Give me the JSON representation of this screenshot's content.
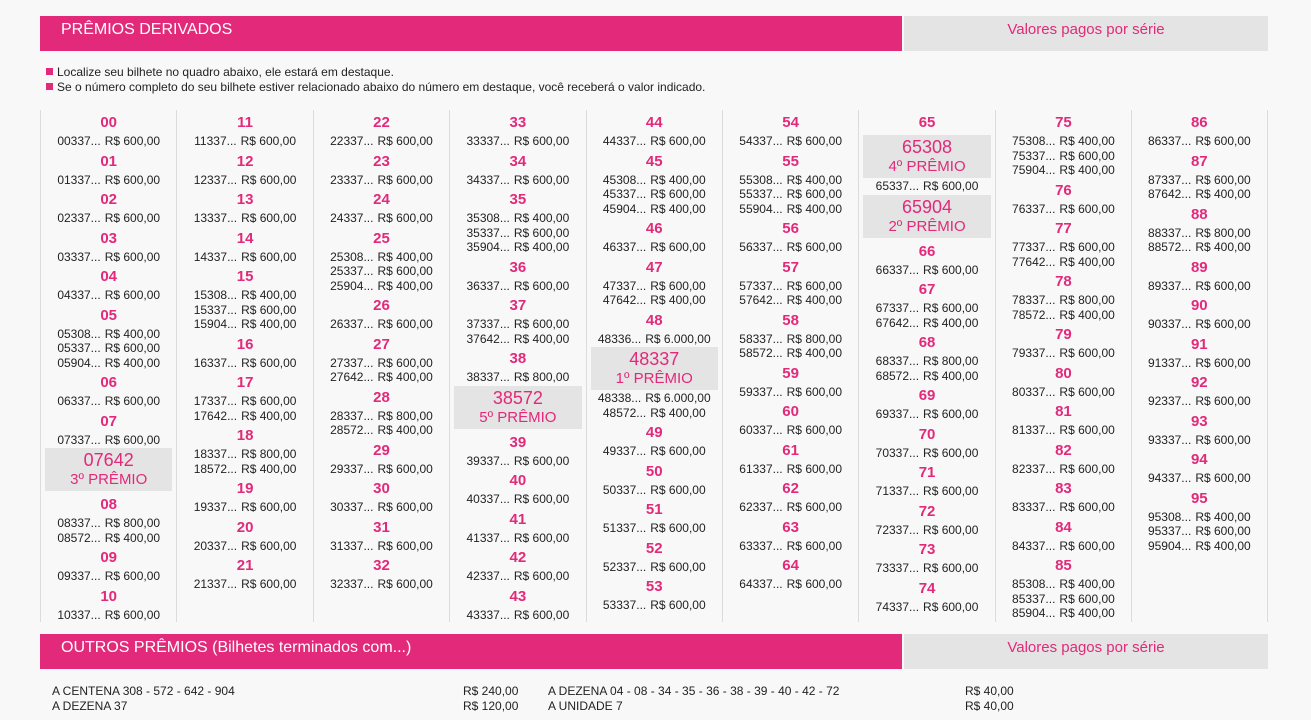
{
  "header": {
    "title": "PRÊMIOS DERIVADOS",
    "side": "Valores pagos por série"
  },
  "notes": [
    "Localize seu bilhete no quadro abaixo, ele estará em destaque.",
    "Se o número completo do seu bilhete estiver relacionado abaixo do número em destaque, você receberá o valor indicado."
  ],
  "columns": [
    {
      "groups": [
        {
          "label": "00",
          "rows": [
            [
              "00337...",
              "R$ 600,00"
            ]
          ]
        },
        {
          "label": "01",
          "rows": [
            [
              "01337...",
              "R$ 600,00"
            ]
          ]
        },
        {
          "label": "02",
          "rows": [
            [
              "02337...",
              "R$ 600,00"
            ]
          ]
        },
        {
          "label": "03",
          "rows": [
            [
              "03337...",
              "R$ 600,00"
            ]
          ]
        },
        {
          "label": "04",
          "rows": [
            [
              "04337...",
              "R$ 600,00"
            ]
          ]
        },
        {
          "label": "05",
          "rows": [
            [
              "05308...",
              "R$ 400,00"
            ],
            [
              "05337...",
              "R$ 600,00"
            ],
            [
              "05904...",
              "R$ 400,00"
            ]
          ]
        },
        {
          "label": "06",
          "rows": [
            [
              "06337...",
              "R$ 600,00"
            ]
          ]
        },
        {
          "label": "07",
          "rows": [
            [
              "07337...",
              "R$ 600,00"
            ],
            {
              "number": "07642",
              "prize": "3º PRÊMIO"
            }
          ]
        },
        {
          "label": "08",
          "rows": [
            [
              "08337...",
              "R$ 800,00"
            ],
            [
              "08572...",
              "R$ 400,00"
            ]
          ]
        },
        {
          "label": "09",
          "rows": [
            [
              "09337...",
              "R$ 600,00"
            ]
          ]
        },
        {
          "label": "10",
          "rows": [
            [
              "10337...",
              "R$ 600,00"
            ]
          ]
        }
      ]
    },
    {
      "groups": [
        {
          "label": "11",
          "rows": [
            [
              "11337...",
              "R$ 600,00"
            ]
          ]
        },
        {
          "label": "12",
          "rows": [
            [
              "12337...",
              "R$ 600,00"
            ]
          ]
        },
        {
          "label": "13",
          "rows": [
            [
              "13337...",
              "R$ 600,00"
            ]
          ]
        },
        {
          "label": "14",
          "rows": [
            [
              "14337...",
              "R$ 600,00"
            ]
          ]
        },
        {
          "label": "15",
          "rows": [
            [
              "15308...",
              "R$ 400,00"
            ],
            [
              "15337...",
              "R$ 600,00"
            ],
            [
              "15904...",
              "R$ 400,00"
            ]
          ]
        },
        {
          "label": "16",
          "rows": [
            [
              "16337...",
              "R$ 600,00"
            ]
          ]
        },
        {
          "label": "17",
          "rows": [
            [
              "17337...",
              "R$ 600,00"
            ],
            [
              "17642...",
              "R$ 400,00"
            ]
          ]
        },
        {
          "label": "18",
          "rows": [
            [
              "18337...",
              "R$ 800,00"
            ],
            [
              "18572...",
              "R$ 400,00"
            ]
          ]
        },
        {
          "label": "19",
          "rows": [
            [
              "19337...",
              "R$ 600,00"
            ]
          ]
        },
        {
          "label": "20",
          "rows": [
            [
              "20337...",
              "R$ 600,00"
            ]
          ]
        },
        {
          "label": "21",
          "rows": [
            [
              "21337...",
              "R$ 600,00"
            ]
          ]
        }
      ]
    },
    {
      "groups": [
        {
          "label": "22",
          "rows": [
            [
              "22337...",
              "R$ 600,00"
            ]
          ]
        },
        {
          "label": "23",
          "rows": [
            [
              "23337...",
              "R$ 600,00"
            ]
          ]
        },
        {
          "label": "24",
          "rows": [
            [
              "24337...",
              "R$ 600,00"
            ]
          ]
        },
        {
          "label": "25",
          "rows": [
            [
              "25308...",
              "R$ 400,00"
            ],
            [
              "25337...",
              "R$ 600,00"
            ],
            [
              "25904...",
              "R$ 400,00"
            ]
          ]
        },
        {
          "label": "26",
          "rows": [
            [
              "26337...",
              "R$ 600,00"
            ]
          ]
        },
        {
          "label": "27",
          "rows": [
            [
              "27337...",
              "R$ 600,00"
            ],
            [
              "27642...",
              "R$ 400,00"
            ]
          ]
        },
        {
          "label": "28",
          "rows": [
            [
              "28337...",
              "R$ 800,00"
            ],
            [
              "28572...",
              "R$ 400,00"
            ]
          ]
        },
        {
          "label": "29",
          "rows": [
            [
              "29337...",
              "R$ 600,00"
            ]
          ]
        },
        {
          "label": "30",
          "rows": [
            [
              "30337...",
              "R$ 600,00"
            ]
          ]
        },
        {
          "label": "31",
          "rows": [
            [
              "31337...",
              "R$ 600,00"
            ]
          ]
        },
        {
          "label": "32",
          "rows": [
            [
              "32337...",
              "R$ 600,00"
            ]
          ]
        }
      ]
    },
    {
      "groups": [
        {
          "label": "33",
          "rows": [
            [
              "33337...",
              "R$ 600,00"
            ]
          ]
        },
        {
          "label": "34",
          "rows": [
            [
              "34337...",
              "R$ 600,00"
            ]
          ]
        },
        {
          "label": "35",
          "rows": [
            [
              "35308...",
              "R$ 400,00"
            ],
            [
              "35337...",
              "R$ 600,00"
            ],
            [
              "35904...",
              "R$ 400,00"
            ]
          ]
        },
        {
          "label": "36",
          "rows": [
            [
              "36337...",
              "R$ 600,00"
            ]
          ]
        },
        {
          "label": "37",
          "rows": [
            [
              "37337...",
              "R$ 600,00"
            ],
            [
              "37642...",
              "R$ 400,00"
            ]
          ]
        },
        {
          "label": "38",
          "rows": [
            [
              "38337...",
              "R$ 800,00"
            ],
            {
              "number": "38572",
              "prize": "5º PRÊMIO"
            }
          ]
        },
        {
          "label": "39",
          "rows": [
            [
              "39337...",
              "R$ 600,00"
            ]
          ]
        },
        {
          "label": "40",
          "rows": [
            [
              "40337...",
              "R$ 600,00"
            ]
          ]
        },
        {
          "label": "41",
          "rows": [
            [
              "41337...",
              "R$ 600,00"
            ]
          ]
        },
        {
          "label": "42",
          "rows": [
            [
              "42337...",
              "R$ 600,00"
            ]
          ]
        },
        {
          "label": "43",
          "rows": [
            [
              "43337...",
              "R$ 600,00"
            ]
          ]
        }
      ]
    },
    {
      "groups": [
        {
          "label": "44",
          "rows": [
            [
              "44337...",
              "R$ 600,00"
            ]
          ]
        },
        {
          "label": "45",
          "rows": [
            [
              "45308...",
              "R$ 400,00"
            ],
            [
              "45337...",
              "R$ 600,00"
            ],
            [
              "45904...",
              "R$ 400,00"
            ]
          ]
        },
        {
          "label": "46",
          "rows": [
            [
              "46337...",
              "R$ 600,00"
            ]
          ]
        },
        {
          "label": "47",
          "rows": [
            [
              "47337...",
              "R$ 600,00"
            ],
            [
              "47642...",
              "R$ 400,00"
            ]
          ]
        },
        {
          "label": "48",
          "rows": [
            [
              "48336...",
              "R$ 6.000,00"
            ],
            {
              "number": "48337",
              "prize": "1º PRÊMIO"
            },
            [
              "48338...",
              "R$ 6.000,00"
            ],
            [
              "48572...",
              "R$ 400,00"
            ]
          ]
        },
        {
          "label": "49",
          "rows": [
            [
              "49337...",
              "R$ 600,00"
            ]
          ]
        },
        {
          "label": "50",
          "rows": [
            [
              "50337...",
              "R$ 600,00"
            ]
          ]
        },
        {
          "label": "51",
          "rows": [
            [
              "51337...",
              "R$ 600,00"
            ]
          ]
        },
        {
          "label": "52",
          "rows": [
            [
              "52337...",
              "R$ 600,00"
            ]
          ]
        },
        {
          "label": "53",
          "rows": [
            [
              "53337...",
              "R$ 600,00"
            ]
          ]
        }
      ]
    },
    {
      "groups": [
        {
          "label": "54",
          "rows": [
            [
              "54337...",
              "R$ 600,00"
            ]
          ]
        },
        {
          "label": "55",
          "rows": [
            [
              "55308...",
              "R$ 400,00"
            ],
            [
              "55337...",
              "R$ 600,00"
            ],
            [
              "55904...",
              "R$ 400,00"
            ]
          ]
        },
        {
          "label": "56",
          "rows": [
            [
              "56337...",
              "R$ 600,00"
            ]
          ]
        },
        {
          "label": "57",
          "rows": [
            [
              "57337...",
              "R$ 600,00"
            ],
            [
              "57642...",
              "R$ 400,00"
            ]
          ]
        },
        {
          "label": "58",
          "rows": [
            [
              "58337...",
              "R$ 800,00"
            ],
            [
              "58572...",
              "R$ 400,00"
            ]
          ]
        },
        {
          "label": "59",
          "rows": [
            [
              "59337...",
              "R$ 600,00"
            ]
          ]
        },
        {
          "label": "60",
          "rows": [
            [
              "60337...",
              "R$ 600,00"
            ]
          ]
        },
        {
          "label": "61",
          "rows": [
            [
              "61337...",
              "R$ 600,00"
            ]
          ]
        },
        {
          "label": "62",
          "rows": [
            [
              "62337...",
              "R$ 600,00"
            ]
          ]
        },
        {
          "label": "63",
          "rows": [
            [
              "63337...",
              "R$ 600,00"
            ]
          ]
        },
        {
          "label": "64",
          "rows": [
            [
              "64337...",
              "R$ 600,00"
            ]
          ]
        }
      ]
    },
    {
      "groups": [
        {
          "label": "65",
          "rows": [
            {
              "number": "65308",
              "prize": "4º PRÊMIO"
            },
            [
              "65337...",
              "R$ 600,00"
            ],
            {
              "number": "65904",
              "prize": "2º PRÊMIO"
            }
          ]
        },
        {
          "label": "66",
          "rows": [
            [
              "66337...",
              "R$ 600,00"
            ]
          ]
        },
        {
          "label": "67",
          "rows": [
            [
              "67337...",
              "R$ 600,00"
            ],
            [
              "67642...",
              "R$ 400,00"
            ]
          ]
        },
        {
          "label": "68",
          "rows": [
            [
              "68337...",
              "R$ 800,00"
            ],
            [
              "68572...",
              "R$ 400,00"
            ]
          ]
        },
        {
          "label": "69",
          "rows": [
            [
              "69337...",
              "R$ 600,00"
            ]
          ]
        },
        {
          "label": "70",
          "rows": [
            [
              "70337...",
              "R$ 600,00"
            ]
          ]
        },
        {
          "label": "71",
          "rows": [
            [
              "71337...",
              "R$ 600,00"
            ]
          ]
        },
        {
          "label": "72",
          "rows": [
            [
              "72337...",
              "R$ 600,00"
            ]
          ]
        },
        {
          "label": "73",
          "rows": [
            [
              "73337...",
              "R$ 600,00"
            ]
          ]
        },
        {
          "label": "74",
          "rows": [
            [
              "74337...",
              "R$ 600,00"
            ]
          ]
        }
      ]
    },
    {
      "groups": [
        {
          "label": "75",
          "rows": [
            [
              "75308...",
              "R$ 400,00"
            ],
            [
              "75337...",
              "R$ 600,00"
            ],
            [
              "75904...",
              "R$ 400,00"
            ]
          ]
        },
        {
          "label": "76",
          "rows": [
            [
              "76337...",
              "R$ 600,00"
            ]
          ]
        },
        {
          "label": "77",
          "rows": [
            [
              "77337...",
              "R$ 600,00"
            ],
            [
              "77642...",
              "R$ 400,00"
            ]
          ]
        },
        {
          "label": "78",
          "rows": [
            [
              "78337...",
              "R$ 800,00"
            ],
            [
              "78572...",
              "R$ 400,00"
            ]
          ]
        },
        {
          "label": "79",
          "rows": [
            [
              "79337...",
              "R$ 600,00"
            ]
          ]
        },
        {
          "label": "80",
          "rows": [
            [
              "80337...",
              "R$ 600,00"
            ]
          ]
        },
        {
          "label": "81",
          "rows": [
            [
              "81337...",
              "R$ 600,00"
            ]
          ]
        },
        {
          "label": "82",
          "rows": [
            [
              "82337...",
              "R$ 600,00"
            ]
          ]
        },
        {
          "label": "83",
          "rows": [
            [
              "83337...",
              "R$ 600,00"
            ]
          ]
        },
        {
          "label": "84",
          "rows": [
            [
              "84337...",
              "R$ 600,00"
            ]
          ]
        },
        {
          "label": "85",
          "rows": [
            [
              "85308...",
              "R$ 400,00"
            ],
            [
              "85337...",
              "R$ 600,00"
            ],
            [
              "85904...",
              "R$ 400,00"
            ]
          ]
        }
      ]
    },
    {
      "groups": [
        {
          "label": "86",
          "rows": [
            [
              "86337...",
              "R$ 600,00"
            ]
          ]
        },
        {
          "label": "87",
          "rows": [
            [
              "87337...",
              "R$ 600,00"
            ],
            [
              "87642...",
              "R$ 400,00"
            ]
          ]
        },
        {
          "label": "88",
          "rows": [
            [
              "88337...",
              "R$ 800,00"
            ],
            [
              "88572...",
              "R$ 400,00"
            ]
          ]
        },
        {
          "label": "89",
          "rows": [
            [
              "89337...",
              "R$ 600,00"
            ]
          ]
        },
        {
          "label": "90",
          "rows": [
            [
              "90337...",
              "R$ 600,00"
            ]
          ]
        },
        {
          "label": "91",
          "rows": [
            [
              "91337...",
              "R$ 600,00"
            ]
          ]
        },
        {
          "label": "92",
          "rows": [
            [
              "92337...",
              "R$ 600,00"
            ]
          ]
        },
        {
          "label": "93",
          "rows": [
            [
              "93337...",
              "R$ 600,00"
            ]
          ]
        },
        {
          "label": "94",
          "rows": [
            [
              "94337...",
              "R$ 600,00"
            ]
          ]
        },
        {
          "label": "95",
          "rows": [
            [
              "95308...",
              "R$ 400,00"
            ],
            [
              "95337...",
              "R$ 600,00"
            ],
            [
              "95904...",
              "R$ 400,00"
            ]
          ]
        }
      ]
    }
  ],
  "other": {
    "title": "OUTROS PRÊMIOS (Bilhetes terminados com...)",
    "side": "Valores pagos por série",
    "left": [
      [
        "A CENTENA 308 - 572 - 642 - 904",
        "R$ 240,00"
      ],
      [
        "A DEZENA 37",
        "R$ 120,00"
      ]
    ],
    "right": [
      [
        "A DEZENA 04 - 08 - 34 - 35 - 36 - 38 - 39 - 40 - 42 - 72",
        "R$ 40,00"
      ],
      [
        "A UNIDADE 7",
        "R$ 40,00"
      ]
    ]
  }
}
